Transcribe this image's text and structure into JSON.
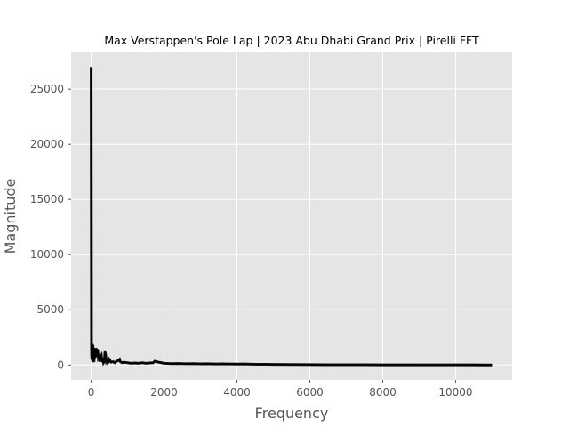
{
  "chart_data": {
    "type": "line",
    "title": "Max Verstappen's Pole Lap | 2023 Abu Dhabi Grand Prix | Pirelli FFT",
    "xlabel": "Frequency",
    "ylabel": "Magnitude",
    "xlim": [
      -550,
      11550
    ],
    "ylim": [
      -1350,
      28400
    ],
    "xticks": [
      0,
      2000,
      4000,
      6000,
      8000,
      10000
    ],
    "yticks": [
      0,
      5000,
      10000,
      15000,
      20000,
      25000
    ],
    "grid": true,
    "colors": {
      "background": "#E5E5E5",
      "grid": "#FFFFFF",
      "line": "#000000",
      "tick_label": "#555555",
      "axis_label": "#555555",
      "title": "#000000"
    },
    "series": [
      {
        "x": [
          0,
          10,
          20,
          30,
          40,
          50,
          60,
          70,
          80,
          90,
          100,
          120,
          140,
          160,
          180,
          200,
          220,
          240,
          260,
          280,
          300,
          320,
          340,
          360,
          380,
          400,
          420,
          440,
          460,
          480,
          500,
          550,
          600,
          650,
          700,
          750,
          780,
          800,
          850,
          900,
          1000,
          1100,
          1200,
          1300,
          1400,
          1500,
          1600,
          1700,
          1750,
          1800,
          1850,
          1900,
          2000,
          2200,
          2400,
          2600,
          2800,
          3000,
          3200,
          3400,
          3600,
          3800,
          4000,
          4200,
          4400,
          4600,
          4800,
          5000,
          5500,
          6000,
          6500,
          7000,
          7500,
          8000,
          8500,
          9000,
          9500,
          10000,
          10500,
          10800,
          11000
        ],
        "values": [
          27000,
          1200,
          500,
          1900,
          300,
          1800,
          600,
          1400,
          300,
          1000,
          1500,
          700,
          1500,
          900,
          1400,
          600,
          700,
          300,
          800,
          900,
          300,
          600,
          200,
          300,
          1200,
          900,
          300,
          400,
          200,
          300,
          500,
          250,
          300,
          200,
          350,
          400,
          500,
          300,
          200,
          250,
          200,
          150,
          180,
          150,
          200,
          150,
          180,
          200,
          350,
          300,
          250,
          220,
          150,
          120,
          130,
          110,
          120,
          100,
          110,
          90,
          100,
          90,
          80,
          90,
          70,
          60,
          60,
          50,
          40,
          30,
          25,
          20,
          20,
          15,
          15,
          10,
          10,
          10,
          8,
          5,
          0
        ]
      }
    ]
  }
}
